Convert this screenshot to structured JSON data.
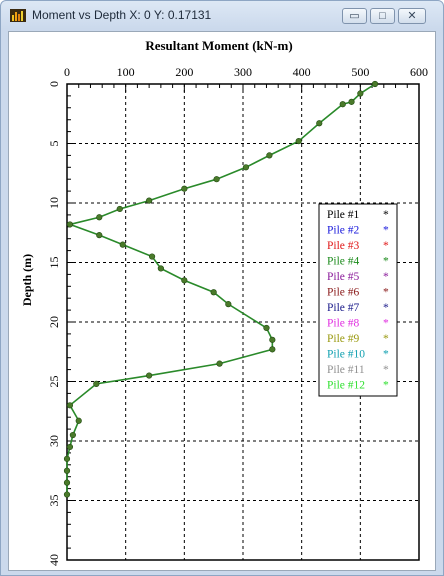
{
  "window": {
    "title": "Moment vs Depth X: 0 Y: 0.17131",
    "minimize_glyph": "▭",
    "maximize_glyph": "□",
    "close_glyph": "✕",
    "icon": "chart-app-icon"
  },
  "chart_data": {
    "type": "line",
    "title": "Resultant Moment (kN-m)",
    "xlabel": "",
    "ylabel": "Depth (m)",
    "xlim": [
      0,
      600
    ],
    "ylim": [
      0,
      40
    ],
    "y_inverted": true,
    "x_axis_position": "top",
    "x_ticks": [
      "0",
      "100",
      "200",
      "300",
      "400",
      "500",
      "600"
    ],
    "y_ticks": [
      "0",
      "5",
      "10",
      "15",
      "20",
      "25",
      "30",
      "35",
      "40"
    ],
    "grid": true,
    "legend": {
      "placement": "right",
      "entries": [
        {
          "label": "Pile #1",
          "color": "#000000"
        },
        {
          "label": "Pile #2",
          "color": "#1a1adc"
        },
        {
          "label": "Pile #3",
          "color": "#e01818"
        },
        {
          "label": "Pile #4",
          "color": "#1a8a1a"
        },
        {
          "label": "Pile #5",
          "color": "#8a1a9a"
        },
        {
          "label": "Pile #6",
          "color": "#8a1a1a"
        },
        {
          "label": "Pile #7",
          "color": "#1a1a8a"
        },
        {
          "label": "Pile #8",
          "color": "#e030e0"
        },
        {
          "label": "Pile #9",
          "color": "#9a9a10"
        },
        {
          "label": "Pile #10",
          "color": "#10a0b0"
        },
        {
          "label": "Pile #11",
          "color": "#909090"
        },
        {
          "label": "Pile #12",
          "color": "#30e030"
        }
      ]
    },
    "line_color": "#2a8a2a",
    "marker_color": "#4a7a2a",
    "series": [
      {
        "x": [
          525,
          500,
          485,
          470,
          430,
          395,
          345,
          305,
          255,
          200,
          140,
          90,
          55,
          5,
          55,
          95,
          145,
          160,
          200,
          250,
          275,
          340,
          350,
          350,
          260,
          140,
          50,
          5,
          20,
          10,
          5,
          0,
          0,
          0,
          0
        ],
        "y": [
          0,
          0.8,
          1.5,
          1.7,
          3.3,
          4.8,
          6.0,
          7.0,
          8.0,
          8.8,
          9.8,
          10.5,
          11.2,
          11.8,
          12.7,
          13.5,
          14.5,
          15.5,
          16.5,
          17.5,
          18.5,
          20.5,
          21.5,
          22.3,
          23.5,
          24.5,
          25.2,
          27.0,
          28.3,
          29.5,
          30.5,
          31.5,
          32.5,
          33.5,
          34.5
        ]
      }
    ]
  }
}
